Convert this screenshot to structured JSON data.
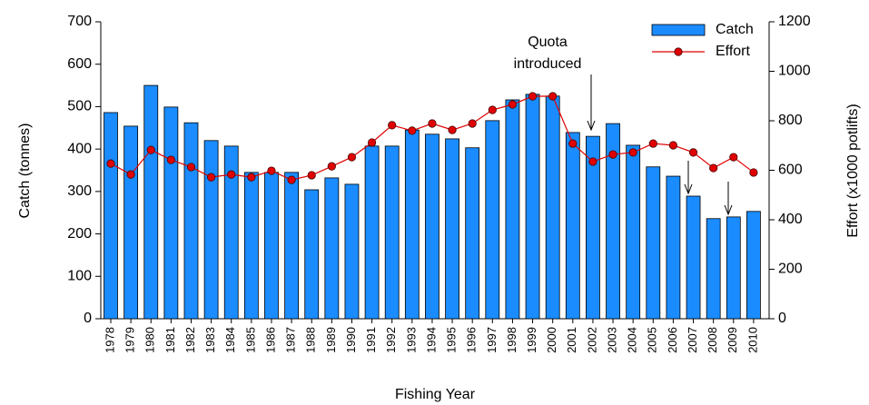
{
  "chart_data": {
    "type": "bar_line",
    "x_label": "Fishing Year",
    "y_label": "Catch (tonnes)",
    "y2_label": "Effort (x1000 potlifts)",
    "annotation_lines": [
      "Quota",
      "introduced"
    ],
    "categories": [
      "1978",
      "1979",
      "1980",
      "1981",
      "1982",
      "1983",
      "1984",
      "1985",
      "1986",
      "1987",
      "1988",
      "1989",
      "1990",
      "1991",
      "1992",
      "1993",
      "1994",
      "1995",
      "1996",
      "1997",
      "1998",
      "1999",
      "2000",
      "2001",
      "2002",
      "2003",
      "2004",
      "2005",
      "2006",
      "2007",
      "2008",
      "2009",
      "2010"
    ],
    "series": [
      {
        "name": "Catch",
        "type": "bar",
        "color": "#1a8cff",
        "values": [
          486,
          454,
          550,
          499,
          462,
          420,
          407,
          345,
          345,
          345,
          304,
          332,
          317,
          407,
          407,
          445,
          435,
          424,
          403,
          467,
          516,
          529,
          525,
          439,
          430,
          460,
          409,
          358,
          336,
          289,
          236,
          240,
          253
        ]
      },
      {
        "name": "Effort",
        "type": "line",
        "axis": "y2",
        "color": "#e00000",
        "values": [
          627,
          583,
          682,
          642,
          613,
          572,
          583,
          572,
          598,
          561,
          580,
          616,
          653,
          712,
          782,
          760,
          789,
          763,
          789,
          844,
          866,
          899,
          899,
          708,
          635,
          664,
          672,
          708,
          701,
          672,
          609,
          653,
          591
        ]
      }
    ],
    "ylim": [
      0,
      700
    ],
    "yticks": [
      0,
      100,
      200,
      300,
      400,
      500,
      600,
      700
    ],
    "y2lim": [
      0,
      1200
    ],
    "y2ticks": [
      0,
      200,
      400,
      600,
      800,
      1000,
      1200
    ]
  }
}
